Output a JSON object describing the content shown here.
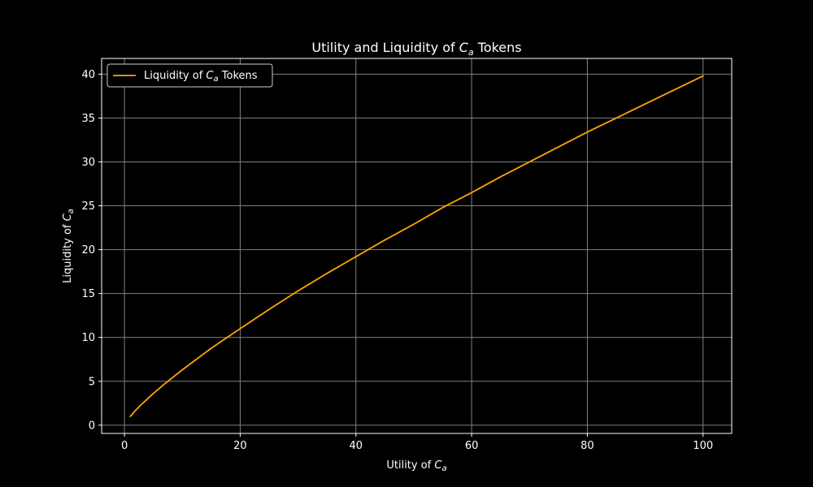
{
  "chart_data": {
    "type": "line",
    "title_prefix": "Utility and Liquidity of ",
    "title_symbol": "C",
    "title_subscript": "a",
    "title_suffix": " Tokens",
    "xlabel_prefix": "Utility of ",
    "xlabel_symbol": "C",
    "xlabel_subscript": "a",
    "ylabel_prefix": "Liquidity of ",
    "ylabel_symbol": "C",
    "ylabel_subscript": "a",
    "xlim": [
      -3.95,
      104.95
    ],
    "ylim": [
      -0.94,
      41.79
    ],
    "xticks": [
      0,
      20,
      40,
      60,
      80,
      100
    ],
    "yticks": [
      0,
      5,
      10,
      15,
      20,
      25,
      30,
      35,
      40
    ],
    "grid": true,
    "legend_position": "top-left",
    "series": [
      {
        "name_prefix": "Liquidity of ",
        "name_symbol": "C",
        "name_subscript": "a",
        "name_suffix": " Tokens",
        "color": "#ffa500",
        "x": [
          1,
          2,
          3,
          5,
          7,
          10,
          15,
          20,
          25,
          30,
          35,
          40,
          45,
          50,
          55,
          60,
          65,
          70,
          75,
          80,
          85,
          90,
          95,
          100
        ],
        "y": [
          1.0,
          1.74,
          2.41,
          3.62,
          4.74,
          6.31,
          8.77,
          11.0,
          13.2,
          15.3,
          17.3,
          19.2,
          21.1,
          22.9,
          24.8,
          26.5,
          28.3,
          30.0,
          31.7,
          33.4,
          35.0,
          36.6,
          38.2,
          39.8
        ]
      }
    ],
    "colors": {
      "background": "#000000",
      "axes": "#ffffff",
      "grid": "#808080"
    }
  }
}
